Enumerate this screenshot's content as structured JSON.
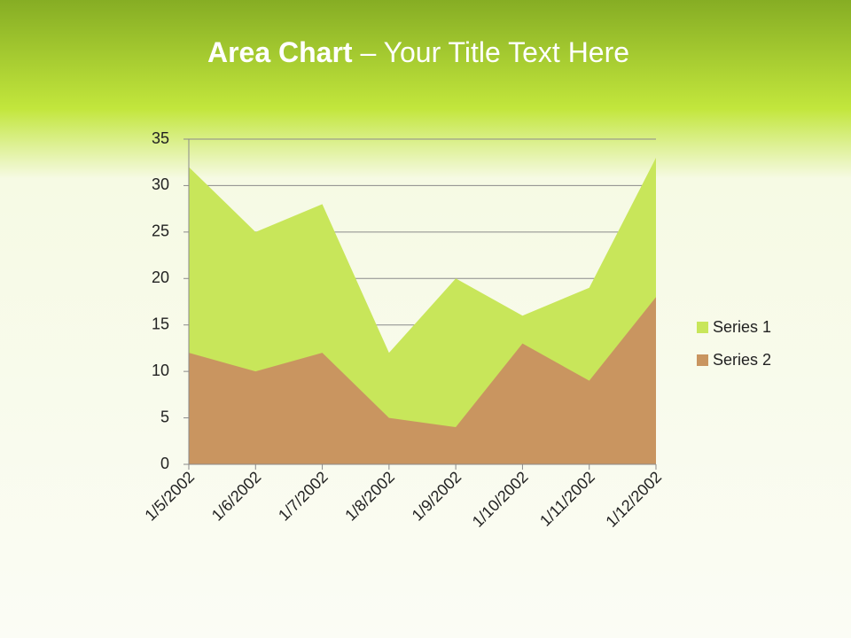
{
  "slide": {
    "title_bold": "Area Chart",
    "title_rest": "– Your Title Text Here"
  },
  "chart_data": {
    "type": "area",
    "categories": [
      "1/5/2002",
      "1/6/2002",
      "1/7/2002",
      "1/8/2002",
      "1/9/2002",
      "1/10/2002",
      "1/11/2002",
      "1/12/2002"
    ],
    "series": [
      {
        "name": "Series 1",
        "color": "#c8e65a",
        "values": [
          32,
          25,
          28,
          12,
          20,
          16,
          19,
          33
        ]
      },
      {
        "name": "Series 2",
        "color": "#c99560",
        "values": [
          12,
          10,
          12,
          5,
          4,
          13,
          9,
          18
        ]
      }
    ],
    "ylim": [
      0,
      35
    ],
    "yticks": [
      0,
      5,
      10,
      15,
      20,
      25,
      30,
      35
    ],
    "grid": true,
    "legend": "right"
  }
}
